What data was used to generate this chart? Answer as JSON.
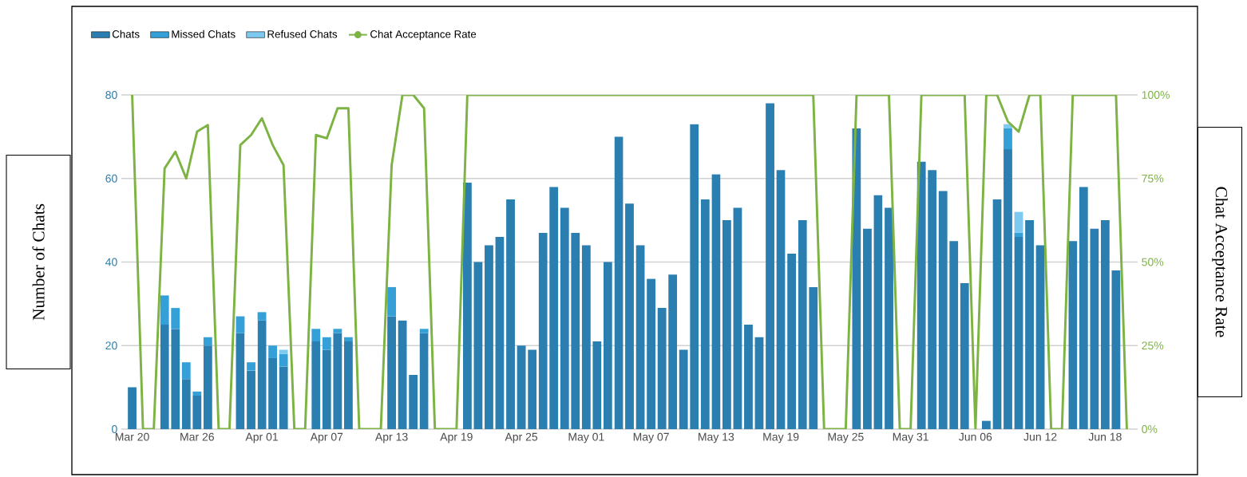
{
  "chart_data": {
    "type": "bar",
    "stacked": true,
    "grid": "y",
    "legend": "top left",
    "ylabel": "Number of Chats",
    "y2label": "Chat Acceptance Rate",
    "categories": [
      "Mar 20",
      null,
      null,
      null,
      null,
      null,
      "Mar 26",
      null,
      null,
      null,
      null,
      null,
      "Apr 01",
      null,
      null,
      null,
      null,
      null,
      "Apr 07",
      null,
      null,
      null,
      null,
      null,
      "Apr 13",
      null,
      null,
      null,
      null,
      null,
      "Apr 19",
      null,
      null,
      null,
      null,
      null,
      "Apr 25",
      null,
      null,
      null,
      null,
      null,
      "May 01",
      null,
      null,
      null,
      null,
      null,
      "May 07",
      null,
      null,
      null,
      null,
      null,
      "May 13",
      null,
      null,
      null,
      null,
      null,
      "May 19",
      null,
      null,
      null,
      null,
      null,
      "May 25",
      null,
      null,
      null,
      null,
      null,
      "May 31",
      null,
      null,
      null,
      null,
      null,
      "Jun 06",
      null,
      null,
      null,
      null,
      null,
      "Jun 12",
      null,
      null,
      null,
      null,
      null,
      "Jun 18",
      null,
      null
    ],
    "ylim": [
      0,
      80
    ],
    "yticks": [
      0,
      20,
      40,
      60,
      80
    ],
    "y2lim": [
      0,
      100
    ],
    "y2ticks": [
      {
        "value": 0,
        "label": "0%"
      },
      {
        "value": 25,
        "label": "25%"
      },
      {
        "value": 50,
        "label": "50%"
      },
      {
        "value": 75,
        "label": "75%"
      },
      {
        "value": 100,
        "label": "100%"
      }
    ],
    "series": [
      {
        "name": "Chats",
        "color": "#2a7fb0",
        "values": [
          10,
          null,
          null,
          25,
          24,
          12,
          8,
          20,
          null,
          null,
          23,
          14,
          26,
          17,
          15,
          null,
          null,
          21,
          19,
          23,
          21,
          null,
          null,
          null,
          27,
          26,
          13,
          23,
          null,
          null,
          null,
          59,
          40,
          44,
          46,
          55,
          20,
          19,
          47,
          58,
          53,
          47,
          44,
          21,
          40,
          70,
          54,
          44,
          36,
          29,
          37,
          19,
          73,
          55,
          61,
          50,
          53,
          25,
          22,
          78,
          62,
          42,
          50,
          34,
          null,
          null,
          null,
          72,
          48,
          56,
          53,
          null,
          null,
          64,
          62,
          57,
          45,
          35,
          null,
          2,
          55,
          67,
          46,
          50,
          44,
          null,
          null,
          45,
          58,
          48,
          50,
          38,
          null
        ]
      },
      {
        "name": "Missed Chats",
        "color": "#35a0d8",
        "values": [
          null,
          null,
          null,
          7,
          5,
          4,
          1,
          2,
          null,
          null,
          4,
          2,
          2,
          3,
          3,
          null,
          null,
          3,
          3,
          1,
          1,
          null,
          null,
          null,
          7,
          null,
          null,
          1,
          null,
          null,
          null,
          null,
          null,
          null,
          null,
          null,
          null,
          null,
          null,
          null,
          null,
          null,
          null,
          null,
          null,
          null,
          null,
          null,
          null,
          null,
          null,
          null,
          null,
          null,
          null,
          null,
          null,
          null,
          null,
          null,
          null,
          null,
          null,
          null,
          null,
          null,
          null,
          null,
          null,
          null,
          null,
          null,
          null,
          null,
          null,
          null,
          null,
          null,
          null,
          null,
          null,
          5,
          1,
          null,
          null,
          null,
          null,
          null,
          null,
          null,
          null,
          null,
          null
        ]
      },
      {
        "name": "Refused Chats",
        "color": "#7dc9f0",
        "values": [
          null,
          null,
          null,
          null,
          null,
          null,
          null,
          null,
          null,
          null,
          null,
          null,
          null,
          null,
          1,
          null,
          null,
          null,
          null,
          null,
          null,
          null,
          null,
          null,
          null,
          null,
          null,
          null,
          null,
          null,
          null,
          null,
          null,
          null,
          null,
          null,
          null,
          null,
          null,
          null,
          null,
          null,
          null,
          null,
          null,
          null,
          null,
          null,
          null,
          null,
          null,
          null,
          null,
          null,
          null,
          null,
          null,
          null,
          null,
          null,
          null,
          null,
          null,
          null,
          null,
          null,
          null,
          null,
          null,
          null,
          null,
          null,
          null,
          null,
          null,
          null,
          null,
          null,
          null,
          null,
          null,
          1,
          5,
          null,
          null,
          null,
          null,
          null,
          null,
          null,
          null,
          null,
          null
        ]
      },
      {
        "name": "Chat Acceptance Rate",
        "type": "line",
        "axis": "y2",
        "color": "#7db343",
        "values": [
          100,
          0,
          0,
          78,
          83,
          75,
          89,
          91,
          0,
          0,
          85,
          88,
          93,
          85,
          79,
          0,
          0,
          88,
          87,
          96,
          96,
          0,
          0,
          0,
          79,
          100,
          100,
          96,
          0,
          0,
          0,
          100,
          100,
          100,
          100,
          100,
          100,
          100,
          100,
          100,
          100,
          100,
          100,
          100,
          100,
          100,
          100,
          100,
          100,
          100,
          100,
          100,
          100,
          100,
          100,
          100,
          100,
          100,
          100,
          100,
          100,
          100,
          100,
          100,
          0,
          0,
          0,
          100,
          100,
          100,
          100,
          0,
          0,
          100,
          100,
          100,
          100,
          100,
          0,
          100,
          100,
          92,
          89,
          100,
          100,
          0,
          0,
          100,
          100,
          100,
          100,
          100,
          0
        ]
      }
    ]
  }
}
